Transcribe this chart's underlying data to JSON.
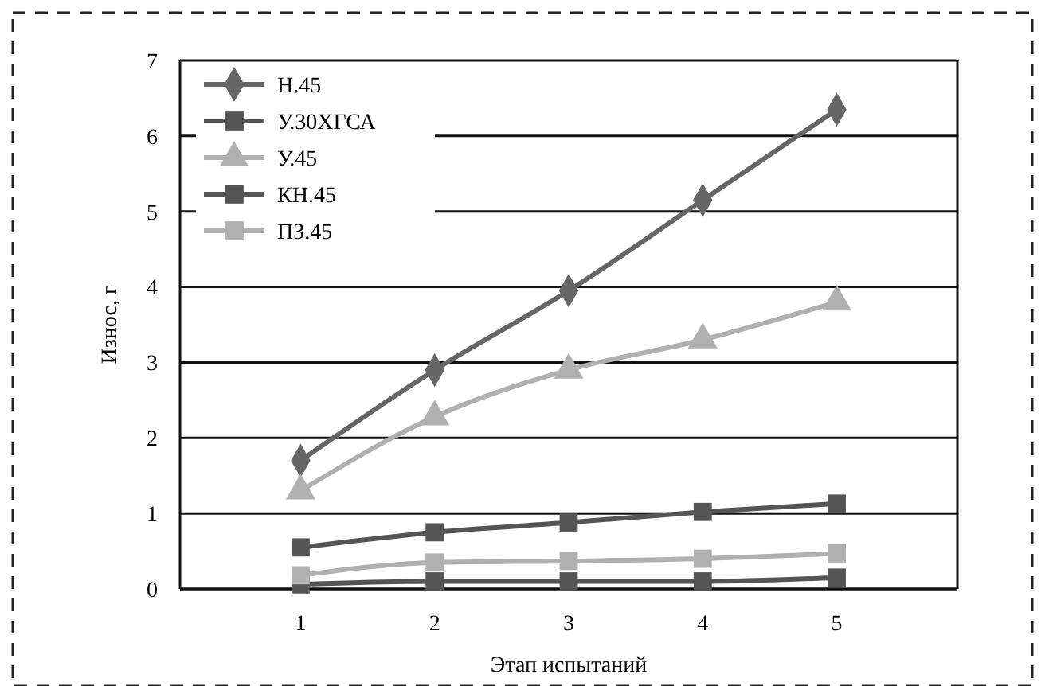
{
  "chart_data": {
    "type": "line",
    "xlabel": "Этап испытаний",
    "ylabel": "Износ, г",
    "categories": [
      "1",
      "2",
      "3",
      "4",
      "5"
    ],
    "ylim": [
      0,
      7
    ],
    "yticks": [
      0,
      1,
      2,
      3,
      4,
      5,
      6,
      7
    ],
    "grid": "y",
    "legend": "top left",
    "series": [
      {
        "name": "Н.45",
        "color": "#666666",
        "marker": "diamond",
        "values": [
          1.7,
          2.9,
          3.95,
          5.15,
          6.35
        ]
      },
      {
        "name": "У.30ХГСА",
        "color": "#555555",
        "marker": "square",
        "values": [
          0.55,
          0.75,
          0.88,
          1.02,
          1.13
        ]
      },
      {
        "name": "У.45",
        "color": "#b0b0b0",
        "marker": "triangle",
        "values": [
          1.3,
          2.28,
          2.9,
          3.3,
          3.8
        ]
      },
      {
        "name": "КН.45",
        "color": "#555555",
        "marker": "square",
        "values": [
          0.06,
          0.1,
          0.1,
          0.1,
          0.15
        ]
      },
      {
        "name": "ПЗ.45",
        "color": "#b0b0b0",
        "marker": "square",
        "values": [
          0.18,
          0.35,
          0.37,
          0.4,
          0.47
        ]
      }
    ]
  }
}
